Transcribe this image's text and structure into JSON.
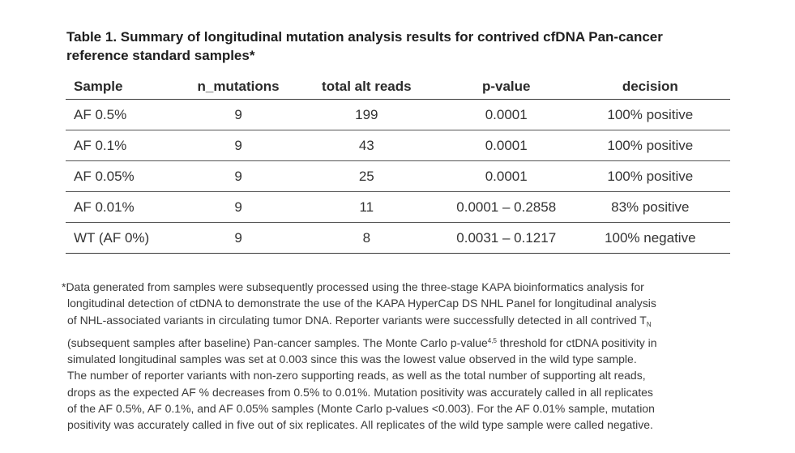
{
  "caption": {
    "line1": "Table 1. Summary of longitudinal mutation analysis results for contrived cfDNA Pan-cancer",
    "line2": "reference standard samples*"
  },
  "table": {
    "headers": [
      "Sample",
      "n_mutations",
      "total alt reads",
      "p-value",
      "decision"
    ],
    "rows": [
      [
        "AF 0.5%",
        "9",
        "199",
        "0.0001",
        "100% positive"
      ],
      [
        "AF 0.1%",
        "9",
        "43",
        "0.0001",
        "100% positive"
      ],
      [
        "AF 0.05%",
        "9",
        "25",
        "0.0001",
        "100% positive"
      ],
      [
        "AF 0.01%",
        "9",
        "11",
        "0.0001 – 0.2858",
        "83% positive"
      ],
      [
        "WT (AF 0%)",
        "9",
        "8",
        "0.0031 – 0.1217",
        "100% negative"
      ]
    ]
  },
  "footnote": {
    "line1": "*Data generated from samples were subsequently processed using the three-stage KAPA bioinformatics analysis for",
    "line2": "longitudinal detection of ctDNA to demonstrate the use of the KAPA HyperCap DS NHL Panel for longitudinal analysis",
    "line3_a": "of NHL-associated variants in circulating tumor DNA. Reporter variants were successfully detected in all contrived T",
    "line3_sub": "N",
    "line4_a": "(subsequent samples after baseline) Pan-cancer samples. The Monte Carlo p-value",
    "line4_sup": "4,5",
    "line4_b": " threshold for ctDNA positivity in",
    "line5": "simulated longitudinal samples was set at 0.003 since this was the lowest value observed in the wild type sample.",
    "line6": "The number of reporter variants with non-zero supporting reads, as well as the total number of supporting alt reads,",
    "line7": "drops as the expected AF % decreases from 0.5% to 0.01%. Mutation positivity was accurately called in all replicates",
    "line8": "of the AF 0.5%, AF 0.1%, and AF 0.05% samples (Monte Carlo p-values <0.003). For the AF 0.01% sample, mutation",
    "line9": "positivity was accurately called in five out of six replicates. All replicates of the wild type sample were called negative."
  }
}
